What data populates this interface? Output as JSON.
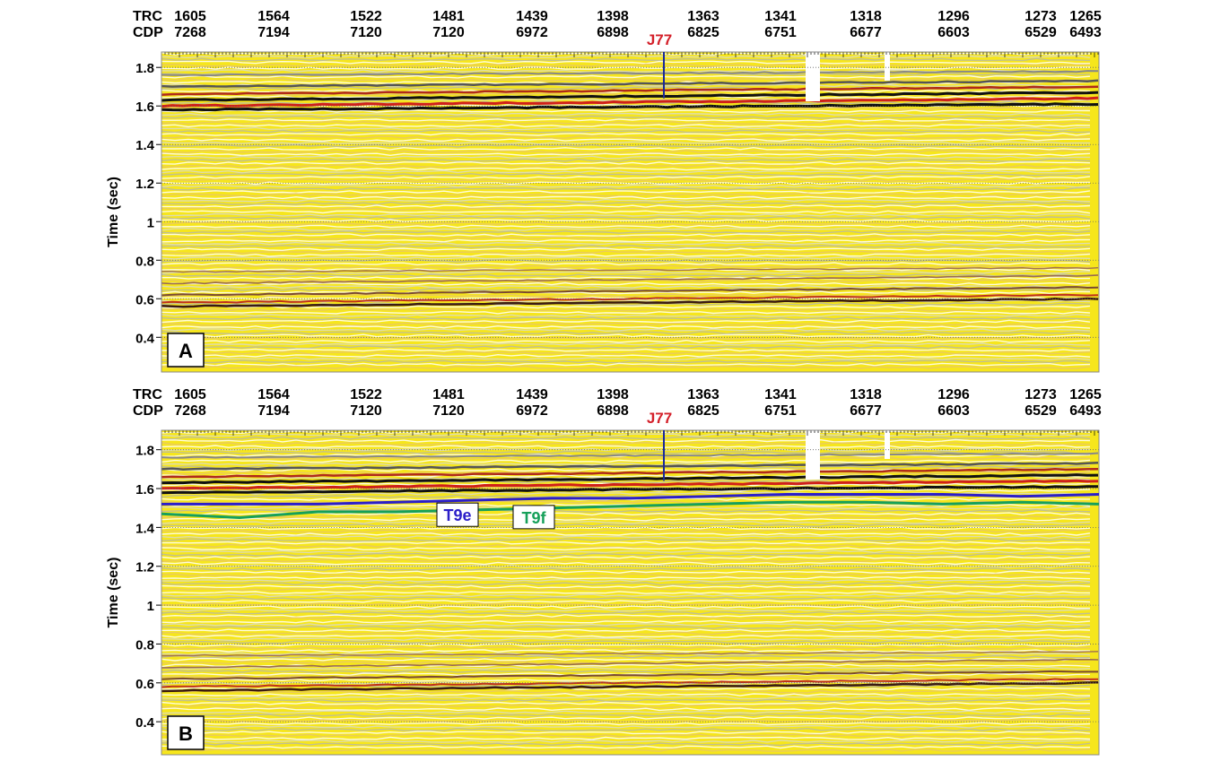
{
  "panels": [
    {
      "label": "A",
      "axis_label": "Time (sec)",
      "trc_header": "TRC",
      "cdp_header": "CDP",
      "well": "J77",
      "ylim": [
        0.22,
        1.88
      ],
      "yticks": [
        0.4,
        0.6,
        0.8,
        1,
        1.2,
        1.4,
        1.6,
        1.8
      ],
      "traces": [
        {
          "trc": "1605",
          "cdp": "7268"
        },
        {
          "trc": "1564",
          "cdp": "7194"
        },
        {
          "trc": "1522",
          "cdp": "7120"
        },
        {
          "trc": "1481",
          "cdp": "7120"
        },
        {
          "trc": "1439",
          "cdp": "6972"
        },
        {
          "trc": "1398",
          "cdp": "6898"
        },
        {
          "trc": "1363",
          "cdp": "6825"
        },
        {
          "trc": "1341",
          "cdp": "6751"
        },
        {
          "trc": "1318",
          "cdp": "6677"
        },
        {
          "trc": "1296",
          "cdp": "6603"
        },
        {
          "trc": "1273",
          "cdp": "6529"
        },
        {
          "trc": "1265",
          "cdp": "6493"
        }
      ]
    },
    {
      "label": "B",
      "axis_label": "Time (sec)",
      "trc_header": "TRC",
      "cdp_header": "CDP",
      "well": "J77",
      "ylim": [
        0.23,
        1.9
      ],
      "yticks": [
        0.4,
        0.6,
        0.8,
        1,
        1.2,
        1.4,
        1.6,
        1.8
      ],
      "traces": [
        {
          "trc": "1605",
          "cdp": "7268"
        },
        {
          "trc": "1564",
          "cdp": "7194"
        },
        {
          "trc": "1522",
          "cdp": "7120"
        },
        {
          "trc": "1481",
          "cdp": "7120"
        },
        {
          "trc": "1439",
          "cdp": "6972"
        },
        {
          "trc": "1398",
          "cdp": "6898"
        },
        {
          "trc": "1363",
          "cdp": "6825"
        },
        {
          "trc": "1341",
          "cdp": "6751"
        },
        {
          "trc": "1318",
          "cdp": "6677"
        },
        {
          "trc": "1296",
          "cdp": "6603"
        },
        {
          "trc": "1273",
          "cdp": "6529"
        },
        {
          "trc": "1265",
          "cdp": "6493"
        }
      ],
      "horizons": [
        {
          "name": "T9f",
          "color": "#16a05a",
          "values": [
            1.47,
            1.45,
            1.48,
            1.48,
            1.49,
            1.5,
            1.51,
            1.52,
            1.53,
            1.53,
            1.52,
            1.53,
            1.52
          ]
        },
        {
          "name": "T9e",
          "color": "#2b1ec8",
          "values": [
            1.52,
            1.52,
            1.52,
            1.53,
            1.54,
            1.55,
            1.55,
            1.56,
            1.57,
            1.57,
            1.57,
            1.56,
            1.57
          ]
        }
      ]
    }
  ]
}
